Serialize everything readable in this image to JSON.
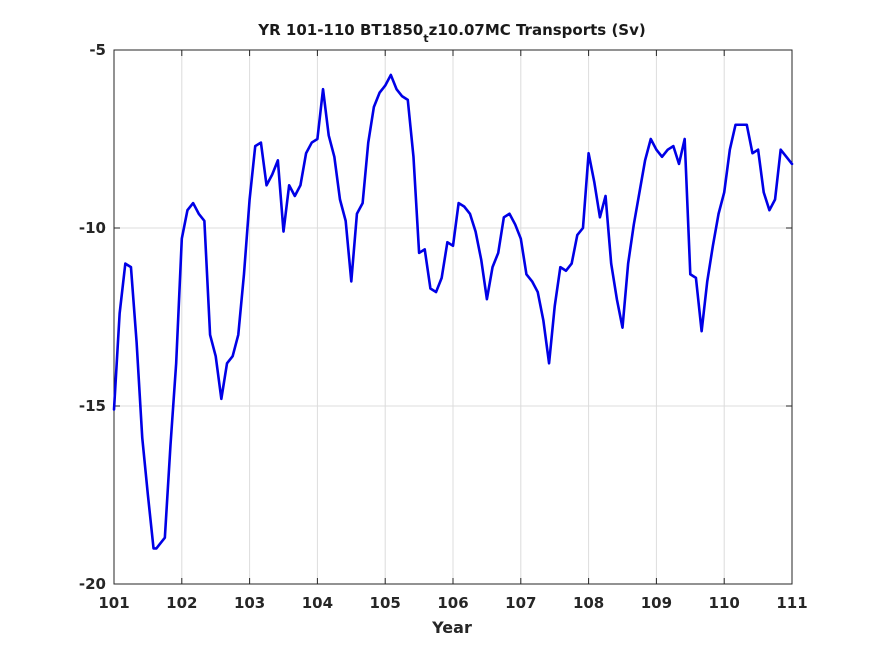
{
  "chart_data": {
    "type": "line",
    "title": {
      "prefix": "YR 101-110 BT1850",
      "subscript": "t",
      "suffix": "z10.07MC Transports (Sv)"
    },
    "xlabel": "Year",
    "ylabel": "",
    "xlim": [
      101,
      111
    ],
    "ylim": [
      -20,
      -5
    ],
    "xticks": [
      101,
      102,
      103,
      104,
      105,
      106,
      107,
      108,
      109,
      110,
      111
    ],
    "yticks": [
      -20,
      -15,
      -10,
      -5
    ],
    "grid": true,
    "colors": {
      "series": "#0000e6",
      "grid": "#dcdcdc",
      "axes": "#262626"
    },
    "series": [
      {
        "x": [
          101.0,
          101.083,
          101.167,
          101.25,
          101.333,
          101.417,
          101.5,
          101.583,
          101.625,
          101.667,
          101.75,
          101.833,
          101.917,
          102.0,
          102.083,
          102.167,
          102.25,
          102.333,
          102.417,
          102.5,
          102.583,
          102.667,
          102.75,
          102.833,
          102.917,
          103.0,
          103.083,
          103.167,
          103.25,
          103.333,
          103.417,
          103.5,
          103.583,
          103.667,
          103.75,
          103.833,
          103.917,
          104.0,
          104.083,
          104.167,
          104.25,
          104.333,
          104.417,
          104.5,
          104.583,
          104.667,
          104.75,
          104.833,
          104.917,
          105.0,
          105.083,
          105.167,
          105.25,
          105.333,
          105.417,
          105.5,
          105.583,
          105.667,
          105.75,
          105.833,
          105.917,
          106.0,
          106.083,
          106.167,
          106.25,
          106.333,
          106.417,
          106.5,
          106.583,
          106.667,
          106.75,
          106.833,
          106.917,
          107.0,
          107.083,
          107.167,
          107.25,
          107.333,
          107.417,
          107.5,
          107.583,
          107.667,
          107.75,
          107.833,
          107.917,
          108.0,
          108.083,
          108.167,
          108.25,
          108.333,
          108.417,
          108.5,
          108.583,
          108.667,
          108.75,
          108.833,
          108.917,
          109.0,
          109.083,
          109.167,
          109.25,
          109.333,
          109.417,
          109.5,
          109.583,
          109.667,
          109.75,
          109.833,
          109.917,
          110.0,
          110.083,
          110.167,
          110.25,
          110.333,
          110.417,
          110.5,
          110.583,
          110.667,
          110.75,
          110.833,
          110.917,
          111.0
        ],
        "values": [
          -15.1,
          -12.4,
          -11.0,
          -11.1,
          -13.2,
          -15.9,
          -17.5,
          -19.0,
          -19.0,
          -18.9,
          -18.7,
          -16.1,
          -13.8,
          -10.3,
          -9.5,
          -9.3,
          -9.6,
          -9.8,
          -13.0,
          -13.6,
          -14.8,
          -13.8,
          -13.6,
          -13.0,
          -11.3,
          -9.2,
          -7.7,
          -7.6,
          -8.8,
          -8.5,
          -8.1,
          -10.1,
          -8.8,
          -9.1,
          -8.8,
          -7.9,
          -7.6,
          -7.5,
          -6.1,
          -7.4,
          -8.0,
          -9.2,
          -9.8,
          -11.5,
          -9.6,
          -9.3,
          -7.6,
          -6.6,
          -6.2,
          -6.0,
          -5.7,
          -6.1,
          -6.3,
          -6.4,
          -8.0,
          -10.7,
          -10.6,
          -11.7,
          -11.8,
          -11.4,
          -10.4,
          -10.5,
          -9.3,
          -9.4,
          -9.6,
          -10.1,
          -10.9,
          -12.0,
          -11.1,
          -10.7,
          -9.7,
          -9.6,
          -9.9,
          -10.3,
          -11.3,
          -11.5,
          -11.8,
          -12.6,
          -13.8,
          -12.2,
          -11.1,
          -11.2,
          -11.0,
          -10.2,
          -10.0,
          -7.9,
          -8.7,
          -9.7,
          -9.1,
          -11.0,
          -12.0,
          -12.8,
          -11.0,
          -9.9,
          -9.0,
          -8.1,
          -7.5,
          -7.8,
          -8.0,
          -7.8,
          -7.7,
          -8.2,
          -7.5,
          -11.3,
          -11.4,
          -12.9,
          -11.5,
          -10.5,
          -9.6,
          -9.0,
          -7.8,
          -7.1,
          -7.1,
          -7.1,
          -7.9,
          -7.8,
          -9.0,
          -9.5,
          -9.2,
          -7.8,
          -8.0,
          -8.2
        ]
      }
    ]
  }
}
